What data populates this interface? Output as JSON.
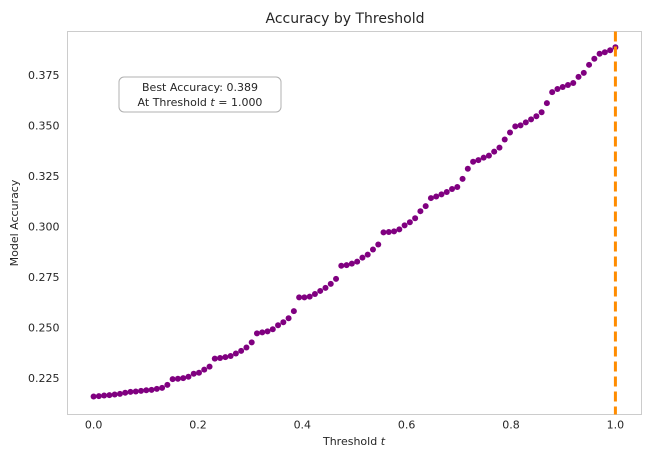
{
  "chart_data": {
    "type": "scatter",
    "title": "Accuracy by Threshold",
    "xlabel_prefix": "Threshold ",
    "xlabel_var": "t",
    "ylabel": "Model Accuracy",
    "xlim": [
      -0.05,
      1.05
    ],
    "ylim": [
      0.2068,
      0.3965
    ],
    "xticks": [
      0.0,
      0.2,
      0.4,
      0.6,
      0.8,
      1.0
    ],
    "xtick_labels": [
      "0.0",
      "0.2",
      "0.4",
      "0.6",
      "0.8",
      "1.0"
    ],
    "yticks": [
      0.225,
      0.25,
      0.275,
      0.3,
      0.325,
      0.35,
      0.375
    ],
    "ytick_labels": [
      "0.225",
      "0.250",
      "0.275",
      "0.300",
      "0.325",
      "0.350",
      "0.375"
    ],
    "grid": false,
    "marker_color": "#800080",
    "vline": {
      "x": 1.0,
      "color": "#ff8c00",
      "style": "dashed"
    },
    "annotation": {
      "line1": "Best Accuracy:  0.389",
      "line2_prefix": "At Threshold ",
      "line2_var": "t",
      "line2_suffix": " =  1.000"
    },
    "series": [
      {
        "x": [
          0.0,
          0.0101,
          0.0202,
          0.0303,
          0.0404,
          0.0505,
          0.0606,
          0.0707,
          0.0808,
          0.0909,
          0.101,
          0.1111,
          0.1212,
          0.1313,
          0.1414,
          0.1515,
          0.1616,
          0.1717,
          0.1818,
          0.1919,
          0.202,
          0.2121,
          0.2222,
          0.2323,
          0.2424,
          0.2525,
          0.2626,
          0.2727,
          0.2828,
          0.2929,
          0.303,
          0.3131,
          0.3232,
          0.3333,
          0.3434,
          0.3535,
          0.3636,
          0.3737,
          0.3838,
          0.3939,
          0.404,
          0.4141,
          0.4242,
          0.4343,
          0.4444,
          0.4545,
          0.4646,
          0.4747,
          0.4848,
          0.4949,
          0.5051,
          0.5152,
          0.5253,
          0.5354,
          0.5455,
          0.5556,
          0.5657,
          0.5758,
          0.5859,
          0.596,
          0.6061,
          0.6162,
          0.6263,
          0.6364,
          0.6465,
          0.6566,
          0.6667,
          0.6768,
          0.6869,
          0.697,
          0.7071,
          0.7172,
          0.7273,
          0.7374,
          0.7475,
          0.7576,
          0.7677,
          0.7778,
          0.7879,
          0.798,
          0.8081,
          0.8182,
          0.8283,
          0.8384,
          0.8485,
          0.8586,
          0.8687,
          0.8788,
          0.8889,
          0.899,
          0.9091,
          0.9192,
          0.9293,
          0.9394,
          0.9495,
          0.9596,
          0.9697,
          0.9798,
          0.9899,
          1.0
        ],
        "y": [
          0.2157,
          0.2159,
          0.2162,
          0.2164,
          0.2167,
          0.217,
          0.2176,
          0.218,
          0.2182,
          0.2185,
          0.2188,
          0.219,
          0.2195,
          0.22,
          0.2215,
          0.2243,
          0.2245,
          0.2248,
          0.2255,
          0.227,
          0.2275,
          0.229,
          0.2305,
          0.2345,
          0.2348,
          0.2352,
          0.2358,
          0.237,
          0.2383,
          0.24,
          0.2425,
          0.247,
          0.2475,
          0.248,
          0.249,
          0.251,
          0.2525,
          0.2545,
          0.258,
          0.2648,
          0.2648,
          0.2652,
          0.2665,
          0.268,
          0.2695,
          0.2715,
          0.274,
          0.2805,
          0.2808,
          0.2815,
          0.2825,
          0.2845,
          0.286,
          0.2885,
          0.291,
          0.297,
          0.2972,
          0.2975,
          0.2985,
          0.3005,
          0.302,
          0.304,
          0.3075,
          0.31,
          0.314,
          0.3148,
          0.3158,
          0.317,
          0.3185,
          0.3195,
          0.3235,
          0.3285,
          0.332,
          0.3328,
          0.334,
          0.335,
          0.337,
          0.339,
          0.343,
          0.3465,
          0.3495,
          0.35,
          0.3515,
          0.353,
          0.3545,
          0.3565,
          0.361,
          0.3665,
          0.368,
          0.369,
          0.37,
          0.371,
          0.374,
          0.376,
          0.38,
          0.383,
          0.3855,
          0.3862,
          0.3872,
          0.3887
        ]
      }
    ]
  }
}
